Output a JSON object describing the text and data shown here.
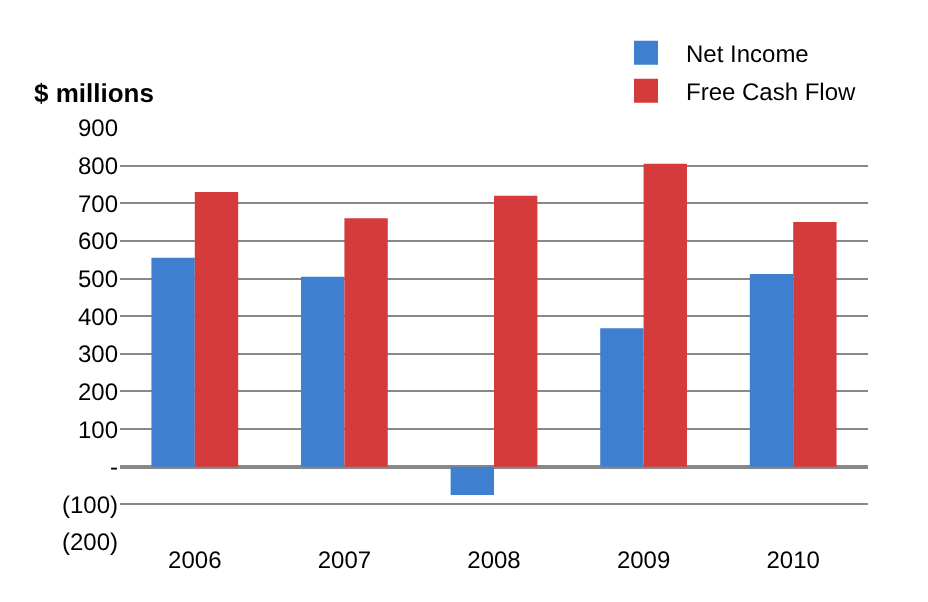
{
  "chart_data": {
    "type": "bar",
    "ylabel": "$ millions",
    "categories": [
      "2006",
      "2007",
      "2008",
      "2009",
      "2010"
    ],
    "series": [
      {
        "name": "Net Income",
        "color": "#3f7fcf",
        "values": [
          555,
          505,
          -75,
          368,
          512
        ]
      },
      {
        "name": "Free Cash Flow",
        "color": "#d63b3b",
        "values": [
          730,
          660,
          720,
          805,
          650
        ]
      }
    ],
    "ylim": [
      -200,
      900
    ],
    "yticks": [
      {
        "value": -200,
        "label": "(200)"
      },
      {
        "value": -100,
        "label": "(100)"
      },
      {
        "value": 0,
        "label": "-"
      },
      100,
      200,
      300,
      400,
      500,
      600,
      700,
      800,
      900
    ],
    "grid": "y",
    "legend": "top right"
  }
}
